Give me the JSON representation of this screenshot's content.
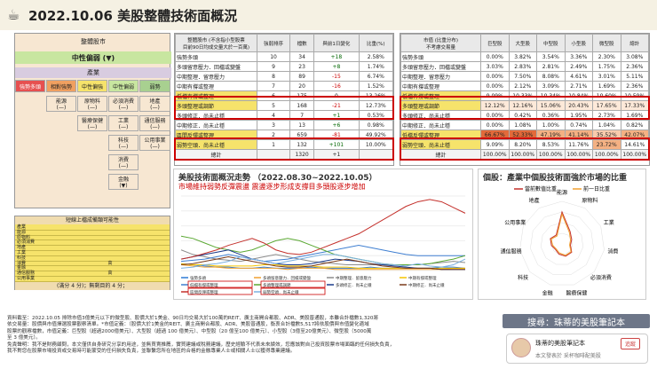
{
  "header": {
    "icon": "coffee-cup-icon",
    "title": "2022.10.06 美股整體技術面概況"
  },
  "left": {
    "market_label": "整體股市",
    "trend": "中性偏弱 (▼)",
    "industry_label": "產業",
    "cats": [
      "強勢多頭",
      "相對強勢",
      "中性偏強",
      "中性偏弱",
      "弱勢"
    ],
    "col2": [
      [
        "能源",
        "(—)"
      ],
      [
        "原物料",
        "(—)"
      ],
      [
        "必須消費",
        "(—)"
      ],
      [
        "地產",
        "(—)"
      ]
    ],
    "col3": [
      "醫療保健",
      "(—)",
      "工業",
      "(—)",
      "科技",
      "(—)",
      "消費",
      "(—)",
      "金融",
      "(▼)",
      "通信服務",
      "(—)",
      "公用事業",
      "(—)"
    ],
    "watch_title": "短線上檔成備類可能性",
    "list": [
      "產業",
      "能源",
      "原物料",
      "必須消費",
      "地產",
      "工業",
      "科技",
      "消費",
      "金融",
      "通信服務",
      "公用事業"
    ],
    "list_marks": [
      "",
      "",
      "",
      "",
      "",
      "",
      "",
      "高",
      "",
      "高",
      ""
    ],
    "legend": "(滿分 4 分)；無剩目的 4 分；"
  },
  "mid_table": {
    "headers": [
      "整體股市 (不含指小型股票\n目前90日均成交量大於一百萬)",
      "強弱排序",
      "檔數",
      "與前1日變化",
      "比重(%)"
    ],
    "rows": [
      [
        "強勢多頭",
        "10",
        "34",
        "+18",
        "2.58%"
      ],
      [
        "多頭留意壓力．回檔或變盤",
        "9",
        "23",
        "+8",
        "1.74%"
      ],
      [
        "中期整理．留意壓力",
        "8",
        "89",
        "-15",
        "6.74%"
      ],
      [
        "中期有撐或整理",
        "7",
        "20",
        "-16",
        "1.52%"
      ],
      [
        "低檔有撐或整理",
        "6",
        "175",
        "0",
        "13.26%"
      ],
      [
        "多頭整理或調節",
        "5",
        "168",
        "-21",
        "12.73%"
      ],
      [
        "多頭修正．尚未止穩",
        "4",
        "7",
        "+1",
        "0.53%"
      ],
      [
        "中期修正．尚未止穩",
        "3",
        "13",
        "+6",
        "0.98%"
      ],
      [
        "區間反彈或整理",
        "2",
        "659",
        "-81",
        "49.92%"
      ],
      [
        "弱勢空頭．尚未止穩",
        "1",
        "132",
        "+101",
        "10.00%"
      ]
    ],
    "total": [
      "總計",
      "",
      "1320",
      "+1",
      ""
    ]
  },
  "right_table": {
    "headers": [
      "市值 (比重分布)\n不考慮交易量",
      "巨型股",
      "大型股",
      "中型股",
      "小型股",
      "微型股",
      "總計"
    ],
    "rows": [
      [
        "強勢多頭",
        "0.00%",
        "3.82%",
        "3.54%",
        "3.36%",
        "2.30%",
        "3.08%"
      ],
      [
        "多頭留意壓力．回檔或變盤",
        "3.03%",
        "2.83%",
        "2.81%",
        "2.49%",
        "1.75%",
        "2.36%"
      ],
      [
        "中期整理．留意壓力",
        "0.00%",
        "7.50%",
        "8.08%",
        "4.61%",
        "3.01%",
        "5.11%"
      ],
      [
        "中期有撐或整理",
        "0.00%",
        "2.12%",
        "3.09%",
        "2.71%",
        "1.69%",
        "2.36%"
      ],
      [
        "低檔有撐或整理",
        "9.09%",
        "10.33%",
        "10.34%",
        "10.84%",
        "10.60%",
        "10.59%"
      ],
      [
        "多頭整理或調節",
        "12.12%",
        "12.16%",
        "15.06%",
        "20.43%",
        "17.65%",
        "17.33%"
      ],
      [
        "多頭修正．尚未止穩",
        "0.00%",
        "0.42%",
        "0.36%",
        "1.95%",
        "2.73%",
        "1.69%"
      ],
      [
        "中期修正．尚未止穩",
        "0.00%",
        "1.08%",
        "1.00%",
        "0.74%",
        "1.04%",
        "0.82%"
      ],
      [
        "低檔反彈或整理",
        "66.67%",
        "52.33%",
        "47.19%",
        "41.14%",
        "35.52%",
        "42.07%"
      ],
      [
        "弱勢空頭．尚未止穩",
        "9.09%",
        "8.20%",
        "8.53%",
        "11.76%",
        "23.72%",
        "14.61%"
      ]
    ],
    "total": [
      "總計",
      "100.00%",
      "100.00%",
      "100.00%",
      "100.00%",
      "100.00%",
      "100.00%"
    ]
  },
  "chart1": {
    "title": "美股技術面概況走勢 （2022.08.30~2022.10.05）",
    "subtitle": "市場維持弱勢反彈震盪 震盪逐步形成支撐目多頭股逐步增加"
  },
  "chart_data": [
    {
      "type": "line",
      "title": "美股技術面概況走勢 （2022.08.30~2022.10.05）",
      "series": [
        {
          "name": "強勢多頭",
          "color": "#2e7bd6",
          "values": [
            6,
            5,
            4,
            3,
            3,
            2,
            2,
            3,
            2,
            2,
            2,
            3,
            2,
            2,
            2,
            2,
            3,
            2,
            2,
            2,
            2,
            2,
            3,
            3,
            2
          ]
        },
        {
          "name": "多頭留意壓力．回檔或變盤",
          "color": "#f0a030",
          "values": [
            5,
            4,
            3,
            3,
            2,
            2,
            2,
            2,
            2,
            1,
            2,
            2,
            2,
            1,
            1,
            1,
            1,
            1,
            1,
            1,
            1,
            1,
            1,
            2,
            2
          ]
        },
        {
          "name": "中期整理．留意壓力",
          "color": "#8c8c8c",
          "values": [
            18,
            14,
            12,
            10,
            9,
            8,
            10,
            12,
            14,
            12,
            10,
            8,
            7,
            6,
            5,
            5,
            5,
            5,
            5,
            5,
            5,
            6,
            7,
            8,
            7
          ]
        },
        {
          "name": "中期有撐或整理",
          "color": "#f5c400",
          "values": [
            6,
            5,
            5,
            4,
            4,
            4,
            4,
            5,
            5,
            4,
            4,
            4,
            3,
            3,
            3,
            2,
            2,
            2,
            2,
            2,
            2,
            2,
            2,
            2,
            2
          ]
        },
        {
          "name": "低檔有撐或整理",
          "color": "#3f7fd1",
          "values": [
            8,
            9,
            10,
            12,
            14,
            12,
            10,
            8,
            9,
            10,
            12,
            14,
            16,
            18,
            20,
            22,
            20,
            18,
            16,
            14,
            13,
            13,
            13,
            13,
            13
          ]
        },
        {
          "name": "多頭整理或調節",
          "color": "#5aa832",
          "values": [
            30,
            28,
            24,
            20,
            18,
            16,
            18,
            22,
            26,
            28,
            26,
            22,
            18,
            14,
            12,
            10,
            8,
            6,
            5,
            5,
            5,
            6,
            8,
            10,
            13
          ]
        },
        {
          "name": "多頭修正．尚未止穩",
          "color": "#1a3a8a",
          "values": [
            10,
            12,
            14,
            16,
            18,
            14,
            10,
            8,
            6,
            5,
            5,
            6,
            8,
            10,
            9,
            8,
            6,
            5,
            4,
            3,
            2,
            2,
            1,
            1,
            1
          ]
        },
        {
          "name": "中期修正．尚未止穩",
          "color": "#7a3a1a",
          "values": [
            5,
            6,
            8,
            10,
            12,
            10,
            8,
            6,
            4,
            3,
            3,
            4,
            6,
            8,
            10,
            8,
            6,
            4,
            3,
            2,
            2,
            2,
            1,
            1,
            1
          ]
        },
        {
          "name": "區間反彈或整理",
          "color": "#c4302b",
          "values": [
            10,
            12,
            15,
            18,
            22,
            25,
            28,
            24,
            18,
            15,
            14,
            16,
            20,
            24,
            28,
            32,
            38,
            44,
            50,
            56,
            60,
            62,
            60,
            55,
            50
          ]
        },
        {
          "name": "弱勢空頭．尚未止穩",
          "color": "#7ab0e0",
          "values": [
            2,
            3,
            5,
            6,
            8,
            12,
            10,
            8,
            6,
            8,
            10,
            12,
            14,
            14,
            12,
            10,
            8,
            6,
            5,
            4,
            6,
            4,
            3,
            5,
            10
          ]
        }
      ]
    },
    {
      "type": "radar",
      "title": "個股：產業中個股技術面強於市場的比重",
      "categories": [
        "能源",
        "原物料",
        "工業",
        "消費",
        "必須消費",
        "醫療保健",
        "金融",
        "科技",
        "通信服務",
        "公用事業",
        "地產"
      ],
      "series": [
        {
          "name": "當前數值比重",
          "color": "#c4302b",
          "values": [
            0.75,
            0.35,
            0.25,
            0.2,
            0.3,
            0.3,
            0.25,
            0.2,
            0.25,
            0.3,
            0.25
          ]
        },
        {
          "name": "前一日比重",
          "color": "#f0a030",
          "values": [
            0.7,
            0.32,
            0.22,
            0.18,
            0.28,
            0.28,
            0.22,
            0.18,
            0.22,
            0.28,
            0.22
          ]
        }
      ]
    }
  ],
  "chart2": {
    "title": "個股：產業中個股技術面強於市場的比重",
    "legend": [
      "當前數值比重",
      "前一日比重"
    ]
  },
  "footer": {
    "line1": "資料截至：2022.10.05 排除市值3億美元以下的微型股、股價大於1美金、90日均交易大於100萬的REIT、廣主商開合都股、ADR、美股普通股，本雖合計檔數1,320將",
    "line2": "依交易量：股價與市值擇選股票觀察清單。*市值定義：（股價大於1美金的REIT、廣主商開合都股、ADR、美股普通股，衡衷合計檔數5,517將依股價與市值變化適域",
    "line3": "股票的觀察檔數，市值定義：巨型股（超過2000億美元）、大型股（超過 100 億美元）、中型股（20 億至100 億美元）、小型股（3億至20億美元）、微型股（5000萬",
    "line4": "至 3 億美元）。",
    "line5": "免責聲明：我不是財務顧問，本文僅供自身研究分享的用途，並無買賣推薦，實買建議或稅務建議，歷史經驗不代表未來績效，您應該對自己投資股票市場面臨的任何損失負責，",
    "line6": "我不對您在股票市場投資或交易時可能蒙受的任何損失負責，並聯繫您所在地區的合格的金融專業人士或相關人士以獲得專業建議。"
  },
  "brand": {
    "search": "搜尋：珠蒂的美股筆記本",
    "name": "珠蒂的美股筆記本",
    "follow": "追蹤",
    "sub": "本文發表於 采杯咖啡配美股"
  }
}
